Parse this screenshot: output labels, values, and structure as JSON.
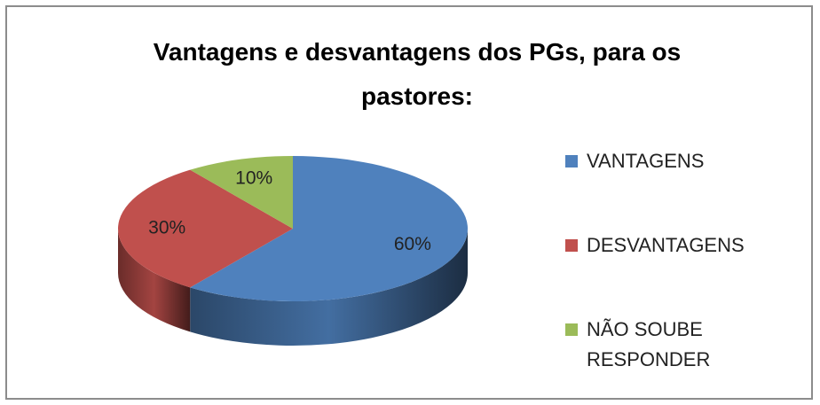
{
  "chart_data": {
    "type": "pie",
    "title": "Vantagens e desvantagens dos PGs, para os pastores:",
    "categories": [
      "VANTAGENS",
      "DESVANTAGENS",
      "NÃO SOUBE RESPONDER"
    ],
    "values": [
      60,
      30,
      10
    ],
    "value_labels": [
      "60%",
      "30%",
      "10%"
    ],
    "colors": [
      "#4f81bd",
      "#c0504d",
      "#9bbb59"
    ],
    "legend": "right"
  }
}
